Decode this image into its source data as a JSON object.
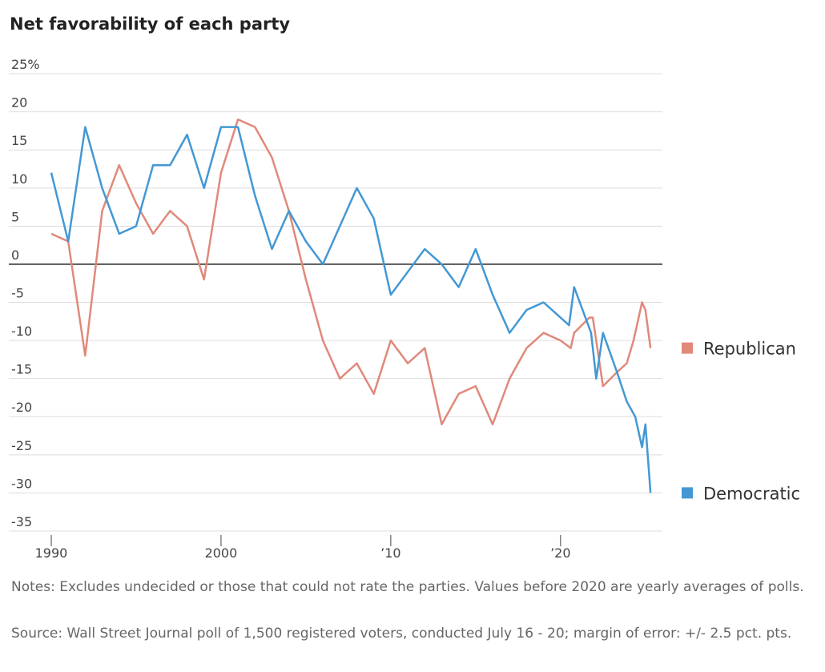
{
  "chart_data": {
    "type": "line",
    "title": "Net favorability of each party",
    "xlim": [
      1987.5,
      2026
    ],
    "xticks": [
      1990,
      2000,
      {
        "value": 2010,
        "label": "’10"
      },
      {
        "value": 2020,
        "label": "’20"
      }
    ],
    "ylim": [
      -37,
      27
    ],
    "yticks": [
      {
        "value": 25,
        "label": "25%"
      },
      20,
      15,
      10,
      5,
      0,
      -5,
      -10,
      -15,
      -20,
      -25,
      -30,
      -35
    ],
    "grid": true,
    "series": [
      {
        "name": "Republican",
        "color": "#e0897a",
        "x": [
          1990,
          1991,
          1992,
          1993,
          1994,
          1995,
          1996,
          1997,
          1998,
          1999,
          2000,
          2001,
          2002,
          2003,
          2004,
          2005,
          2006,
          2007,
          2008,
          2009,
          2010,
          2011,
          2012,
          2013,
          2014,
          2015,
          2016,
          2017,
          2018,
          2019,
          2020,
          2020.6,
          2020.8,
          2021.7,
          2021.9,
          2022.5,
          2023.4,
          2023.9,
          2024.3,
          2024.8,
          2025.0,
          2025.3
        ],
        "values": [
          4,
          3,
          -12,
          7,
          13,
          8,
          4,
          7,
          5,
          -2,
          12,
          19,
          18,
          14,
          7,
          -2,
          -10,
          -15,
          -13,
          -17,
          -10,
          -13,
          -11,
          -21,
          -17,
          -16,
          -21,
          -15,
          -11,
          -9,
          -10,
          -11,
          -9,
          -7,
          -7,
          -16,
          -14,
          -13,
          -10,
          -5,
          -6,
          -11
        ]
      },
      {
        "name": "Democratic",
        "color": "#4398d4",
        "x": [
          1990,
          1991,
          1992,
          1993,
          1994,
          1995,
          1996,
          1997,
          1998,
          1999,
          2000,
          2001,
          2002,
          2003,
          2004,
          2005,
          2006,
          2007,
          2008,
          2009,
          2010,
          2011,
          2012,
          2013,
          2014,
          2015,
          2016,
          2017,
          2018,
          2019,
          2020.5,
          2020.8,
          2021.8,
          2022.1,
          2022.5,
          2023.3,
          2023.9,
          2024.4,
          2024.8,
          2025.0,
          2025.3
        ],
        "values": [
          12,
          3,
          18,
          10,
          4,
          5,
          13,
          13,
          17,
          10,
          18,
          18,
          9,
          2,
          7,
          3,
          0,
          5,
          10,
          6,
          -4,
          -1,
          2,
          0,
          -3,
          2,
          -4,
          -9,
          -6,
          -5,
          -8,
          -3,
          -9,
          -15,
          -9,
          -14,
          -18,
          -20,
          -24,
          -21,
          -30
        ]
      }
    ],
    "notes": "Notes: Excludes undecided or those that could not rate the parties. Values before 2020 are yearly averages of polls.",
    "source": "Source: Wall Street Journal poll of 1,500 registered voters, conducted July 16 - 20; margin of error: +/- 2.5 pct. pts."
  }
}
